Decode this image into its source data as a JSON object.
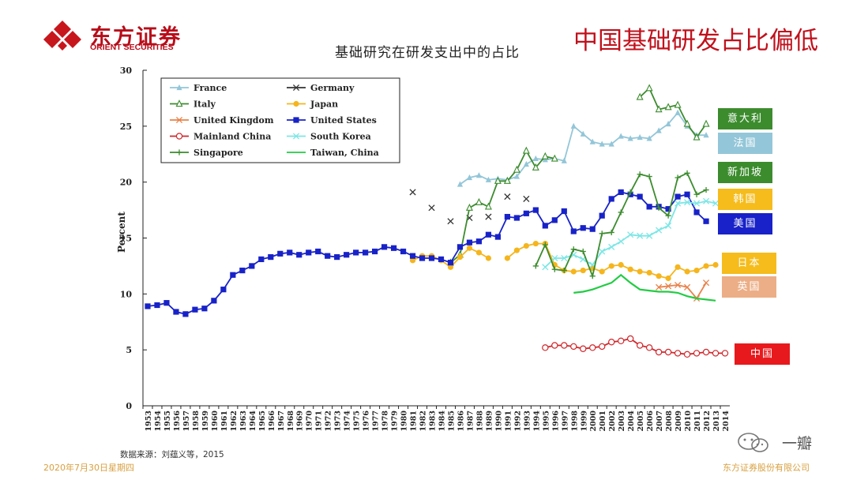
{
  "header": {
    "logo_cn": "东方证券",
    "logo_en": "ORIENT SECURITIES",
    "slide_title": "中国基础研发占比偏低"
  },
  "footer": {
    "source": "数据来源：刘蕴义等，2015",
    "date": "2020年7月30日星期四",
    "company": "东方证券股份有限公司"
  },
  "watermark": {
    "text": "一瓣"
  },
  "colors": {
    "brand": "#b80d1a",
    "footer": "#d8a040"
  },
  "tags": [
    {
      "label": "意大利",
      "color": "#3c8c2e"
    },
    {
      "label": "法国",
      "color": "#93c6d8"
    },
    {
      "label": "新加坡",
      "color": "#3c8c2e"
    },
    {
      "label": "韩国",
      "color": "#f5bc1c"
    },
    {
      "label": "美国",
      "color": "#1822c8"
    },
    {
      "label": "日本",
      "color": "#f5bc1c"
    },
    {
      "label": "英国",
      "color": "#ecae86"
    },
    {
      "label": "中国",
      "color": "#e8191c"
    }
  ],
  "chart_data": {
    "type": "line",
    "title": "基础研究在研发支出中的占比",
    "ylabel": "Percent",
    "xlabel": "",
    "ylim": [
      0,
      30
    ],
    "yticks": [
      0,
      5,
      10,
      15,
      20,
      25,
      30
    ],
    "x": [
      "1953",
      "1954",
      "1955",
      "1956",
      "1957",
      "1958",
      "1959",
      "1960",
      "1961",
      "1962",
      "1963",
      "1964",
      "1965",
      "1966",
      "1967",
      "1968",
      "1969",
      "1970",
      "1971",
      "1972",
      "1973",
      "1974",
      "1975",
      "1976",
      "1977",
      "1978",
      "1979",
      "1980",
      "1981",
      "1982",
      "1983",
      "1984",
      "1985",
      "1986",
      "1987",
      "1988",
      "1989",
      "1990",
      "1991",
      "1992",
      "1993",
      "1994",
      "1995",
      "1996",
      "1997",
      "1998",
      "1999",
      "2000",
      "2001",
      "2002",
      "2003",
      "2004",
      "2005",
      "2006",
      "2007",
      "2008",
      "2009",
      "2010",
      "2011",
      "2012",
      "2013",
      "2014"
    ],
    "legend_position": "top-left",
    "grid": false,
    "series": [
      {
        "name": "France",
        "color": "#93c6d8",
        "marker": "triangle",
        "points": [
          [
            1986,
            19.8
          ],
          [
            1987,
            20.4
          ],
          [
            1988,
            20.6
          ],
          [
            1989,
            20.2
          ],
          [
            1990,
            20.3
          ],
          [
            1991,
            20.2
          ],
          [
            1992,
            20.5
          ],
          [
            1993,
            21.6
          ],
          [
            1994,
            22.1
          ],
          [
            1995,
            22.0
          ],
          [
            1996,
            22.1
          ],
          [
            1997,
            21.9
          ],
          [
            1998,
            25.0
          ],
          [
            1999,
            24.3
          ],
          [
            2000,
            23.6
          ],
          [
            2001,
            23.4
          ],
          [
            2002,
            23.4
          ],
          [
            2003,
            24.1
          ],
          [
            2004,
            23.9
          ],
          [
            2005,
            24.0
          ],
          [
            2006,
            23.9
          ],
          [
            2007,
            24.6
          ],
          [
            2008,
            25.2
          ],
          [
            2009,
            26.2
          ],
          [
            2010,
            25.0
          ],
          [
            2011,
            24.2
          ],
          [
            2012,
            24.2
          ]
        ]
      },
      {
        "name": "Germany",
        "color": "#333333",
        "marker": "x",
        "points": [
          [
            1981,
            19.1
          ],
          [
            1983,
            17.7
          ],
          [
            1985,
            16.5
          ],
          [
            1987,
            16.8
          ],
          [
            1989,
            16.9
          ],
          [
            1991,
            18.7
          ],
          [
            1993,
            18.5
          ]
        ]
      },
      {
        "name": "Italy",
        "color": "#3c8c2e",
        "marker": "triangle-open",
        "segments": [
          [
            [
              1985,
              12.8
            ],
            [
              1986,
              13.5
            ],
            [
              1987,
              17.7
            ],
            [
              1988,
              18.2
            ],
            [
              1989,
              17.8
            ],
            [
              1990,
              20.1
            ],
            [
              1991,
              20.1
            ],
            [
              1992,
              21.1
            ],
            [
              1993,
              22.8
            ],
            [
              1994,
              21.3
            ],
            [
              1995,
              22.3
            ],
            [
              1996,
              22.1
            ]
          ],
          [
            [
              2005,
              27.6
            ],
            [
              2006,
              28.4
            ],
            [
              2007,
              26.5
            ],
            [
              2008,
              26.7
            ],
            [
              2009,
              26.9
            ],
            [
              2010,
              25.2
            ],
            [
              2011,
              24.0
            ],
            [
              2012,
              25.2
            ]
          ]
        ]
      },
      {
        "name": "Japan",
        "color": "#f5b51c",
        "marker": "circle",
        "segments": [
          [
            [
              1981,
              13.0
            ],
            [
              1982,
              13.4
            ],
            [
              1983,
              13.4
            ],
            [
              1984,
              13.0
            ],
            [
              1985,
              12.4
            ],
            [
              1986,
              13.3
            ],
            [
              1987,
              14.1
            ],
            [
              1988,
              13.7
            ],
            [
              1989,
              13.2
            ]
          ],
          [
            [
              1991,
              13.2
            ],
            [
              1992,
              13.9
            ],
            [
              1993,
              14.3
            ],
            [
              1994,
              14.5
            ],
            [
              1995,
              14.5
            ],
            [
              1996,
              12.6
            ],
            [
              1997,
              12.1
            ],
            [
              1998,
              12.0
            ],
            [
              1999,
              12.1
            ],
            [
              2000,
              12.3
            ],
            [
              2001,
              12.0
            ],
            [
              2002,
              12.5
            ],
            [
              2003,
              12.6
            ],
            [
              2004,
              12.2
            ],
            [
              2005,
              12.0
            ],
            [
              2006,
              11.9
            ],
            [
              2007,
              11.6
            ],
            [
              2008,
              11.4
            ],
            [
              2009,
              12.4
            ],
            [
              2010,
              12.0
            ],
            [
              2011,
              12.1
            ],
            [
              2012,
              12.5
            ],
            [
              2013,
              12.6
            ]
          ]
        ]
      },
      {
        "name": "United Kingdom",
        "color": "#e8824a",
        "marker": "x",
        "points": [
          [
            2007,
            10.6
          ],
          [
            2008,
            10.7
          ],
          [
            2009,
            10.8
          ],
          [
            2010,
            10.6
          ],
          [
            2011,
            9.6
          ],
          [
            2012,
            11.0
          ]
        ]
      },
      {
        "name": "United States",
        "color": "#1822c8",
        "marker": "square",
        "points": [
          [
            1953,
            8.9
          ],
          [
            1954,
            9.0
          ],
          [
            1955,
            9.2
          ],
          [
            1956,
            8.4
          ],
          [
            1957,
            8.2
          ],
          [
            1958,
            8.6
          ],
          [
            1959,
            8.7
          ],
          [
            1960,
            9.4
          ],
          [
            1961,
            10.4
          ],
          [
            1962,
            11.7
          ],
          [
            1963,
            12.1
          ],
          [
            1964,
            12.5
          ],
          [
            1965,
            13.1
          ],
          [
            1966,
            13.3
          ],
          [
            1967,
            13.6
          ],
          [
            1968,
            13.7
          ],
          [
            1969,
            13.5
          ],
          [
            1970,
            13.7
          ],
          [
            1971,
            13.8
          ],
          [
            1972,
            13.4
          ],
          [
            1973,
            13.3
          ],
          [
            1974,
            13.5
          ],
          [
            1975,
            13.7
          ],
          [
            1976,
            13.7
          ],
          [
            1977,
            13.8
          ],
          [
            1978,
            14.2
          ],
          [
            1979,
            14.1
          ],
          [
            1980,
            13.8
          ],
          [
            1981,
            13.4
          ],
          [
            1982,
            13.2
          ],
          [
            1983,
            13.2
          ],
          [
            1984,
            13.1
          ],
          [
            1985,
            12.8
          ],
          [
            1986,
            14.2
          ],
          [
            1987,
            14.6
          ],
          [
            1988,
            14.7
          ],
          [
            1989,
            15.3
          ],
          [
            1990,
            15.1
          ],
          [
            1991,
            16.9
          ],
          [
            1992,
            16.8
          ],
          [
            1993,
            17.2
          ],
          [
            1994,
            17.5
          ],
          [
            1995,
            16.1
          ],
          [
            1996,
            16.6
          ],
          [
            1997,
            17.4
          ],
          [
            1998,
            15.6
          ],
          [
            1999,
            15.9
          ],
          [
            2000,
            15.8
          ],
          [
            2001,
            17.0
          ],
          [
            2002,
            18.5
          ],
          [
            2003,
            19.1
          ],
          [
            2004,
            18.9
          ],
          [
            2005,
            18.7
          ],
          [
            2006,
            17.8
          ],
          [
            2007,
            17.8
          ],
          [
            2008,
            17.6
          ],
          [
            2009,
            18.7
          ],
          [
            2010,
            18.9
          ],
          [
            2011,
            17.3
          ],
          [
            2012,
            16.5
          ]
        ]
      },
      {
        "name": "Mainland China",
        "color": "#d0282c",
        "marker": "circle-open",
        "points": [
          [
            1995,
            5.2
          ],
          [
            1996,
            5.4
          ],
          [
            1997,
            5.4
          ],
          [
            1998,
            5.3
          ],
          [
            1999,
            5.1
          ],
          [
            2000,
            5.2
          ],
          [
            2001,
            5.3
          ],
          [
            2002,
            5.7
          ],
          [
            2003,
            5.8
          ],
          [
            2004,
            6.0
          ],
          [
            2005,
            5.4
          ],
          [
            2006,
            5.2
          ],
          [
            2007,
            4.8
          ],
          [
            2008,
            4.8
          ],
          [
            2009,
            4.7
          ],
          [
            2010,
            4.6
          ],
          [
            2011,
            4.7
          ],
          [
            2012,
            4.8
          ],
          [
            2013,
            4.7
          ],
          [
            2014,
            4.7
          ]
        ]
      },
      {
        "name": "South Korea",
        "color": "#7ce6e6",
        "marker": "x",
        "points": [
          [
            1995,
            12.4
          ],
          [
            1996,
            13.2
          ],
          [
            1997,
            13.2
          ],
          [
            1998,
            13.5
          ],
          [
            1999,
            13.1
          ],
          [
            2000,
            12.6
          ],
          [
            2001,
            13.8
          ],
          [
            2002,
            14.2
          ],
          [
            2003,
            14.7
          ],
          [
            2004,
            15.3
          ],
          [
            2005,
            15.2
          ],
          [
            2006,
            15.2
          ],
          [
            2007,
            15.7
          ],
          [
            2008,
            16.1
          ],
          [
            2009,
            18.1
          ],
          [
            2010,
            18.2
          ],
          [
            2011,
            18.1
          ],
          [
            2012,
            18.3
          ],
          [
            2013,
            18.1
          ]
        ]
      },
      {
        "name": "Singapore",
        "color": "#3c8c2e",
        "marker": "plus",
        "points": [
          [
            1994,
            12.5
          ],
          [
            1995,
            14.4
          ],
          [
            1996,
            12.2
          ],
          [
            1997,
            12.1
          ],
          [
            1998,
            14.0
          ],
          [
            1999,
            13.8
          ],
          [
            2000,
            11.6
          ],
          [
            2001,
            15.4
          ],
          [
            2002,
            15.5
          ],
          [
            2003,
            17.3
          ],
          [
            2004,
            19.1
          ],
          [
            2005,
            20.7
          ],
          [
            2006,
            20.5
          ],
          [
            2007,
            17.7
          ],
          [
            2008,
            17.0
          ],
          [
            2009,
            20.4
          ],
          [
            2010,
            20.8
          ],
          [
            2011,
            18.9
          ],
          [
            2012,
            19.3
          ]
        ]
      },
      {
        "name": "Taiwan, China",
        "color": "#22cc44",
        "marker": "none",
        "points": [
          [
            1998,
            10.1
          ],
          [
            1999,
            10.2
          ],
          [
            2000,
            10.4
          ],
          [
            2001,
            10.7
          ],
          [
            2002,
            11.0
          ],
          [
            2003,
            11.7
          ],
          [
            2004,
            11.0
          ],
          [
            2005,
            10.4
          ],
          [
            2006,
            10.3
          ],
          [
            2007,
            10.2
          ],
          [
            2008,
            10.2
          ],
          [
            2009,
            10.1
          ],
          [
            2010,
            9.8
          ],
          [
            2011,
            9.6
          ],
          [
            2012,
            9.5
          ],
          [
            2013,
            9.4
          ]
        ]
      }
    ]
  }
}
